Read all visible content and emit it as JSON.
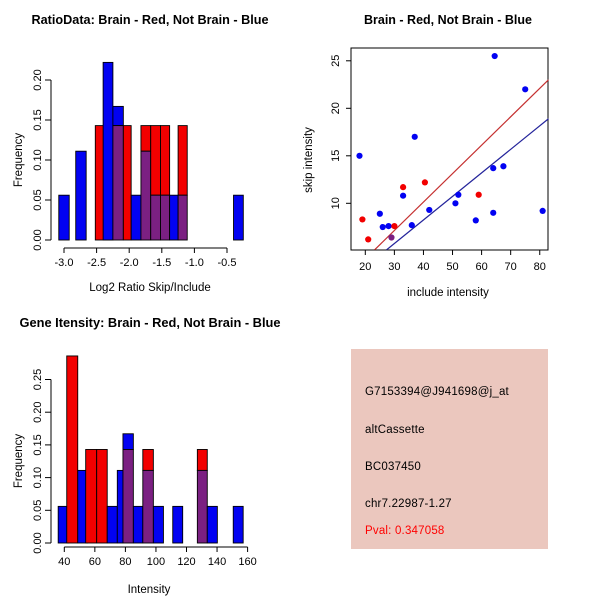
{
  "colors": {
    "blue": "#0202F2",
    "red": "#F20000",
    "purple": "#7B2082",
    "line_red": "#C53030",
    "line_blue": "#24249B",
    "axis": "#000000",
    "info_bg": "#EBC7BE",
    "pval_red": "#FF0000"
  },
  "chart_data": [
    {
      "id": "ratio_hist",
      "type": "bar",
      "title": "RatioData: Brain - Red, Not Brain - Blue",
      "xlabel": "Log2 Ratio Skip/Include",
      "ylabel": "Frequency",
      "xlim": [
        -3.2,
        -0.2
      ],
      "ylim": [
        0,
        0.23
      ],
      "xticks": [
        -3.0,
        -2.5,
        -2.0,
        -1.5,
        -1.0,
        -0.5
      ],
      "xtick_labels": [
        "-3.0",
        "-2.5",
        "-2.0",
        "-1.5",
        "-1.0",
        "-0.5"
      ],
      "yticks": [
        0,
        0.05,
        0.1,
        0.15,
        0.2
      ],
      "ytick_labels": [
        "0.00",
        "0.05",
        "0.10",
        "0.15",
        "0.20"
      ],
      "grid": false,
      "segments": [
        [
          -3.08,
          -2.92,
          0,
          0.056,
          "b"
        ],
        [
          -2.82,
          -2.66,
          0,
          0.111,
          "b"
        ],
        [
          -2.52,
          -2.25,
          0,
          0.143,
          "r"
        ],
        [
          -2.4,
          -2.25,
          0,
          0.222,
          "b"
        ],
        [
          -2.25,
          -2.09,
          0.143,
          0.167,
          "b"
        ],
        [
          -2.25,
          -2.09,
          0,
          0.143,
          "p"
        ],
        [
          -2.09,
          -1.97,
          0,
          0.143,
          "r"
        ],
        [
          -1.97,
          -1.82,
          0,
          0.056,
          "b"
        ],
        [
          -1.82,
          -1.67,
          0.111,
          0.143,
          "r"
        ],
        [
          -1.82,
          -1.67,
          0,
          0.111,
          "p"
        ],
        [
          -1.67,
          -1.52,
          0.056,
          0.143,
          "r"
        ],
        [
          -1.67,
          -1.52,
          0,
          0.056,
          "p"
        ],
        [
          -1.52,
          -1.38,
          0.056,
          0.143,
          "r"
        ],
        [
          -1.52,
          -1.38,
          0,
          0.056,
          "p"
        ],
        [
          -1.38,
          -1.25,
          0,
          0.056,
          "b"
        ],
        [
          -1.25,
          -1.11,
          0.056,
          0.143,
          "r"
        ],
        [
          -1.25,
          -1.11,
          0,
          0.056,
          "p"
        ],
        [
          -0.4,
          -0.25,
          0,
          0.056,
          "b"
        ]
      ]
    },
    {
      "id": "scatter",
      "type": "scatter",
      "title": "Brain - Red, Not Brain - Blue",
      "xlabel": "include intensity",
      "ylabel": "skip intensity",
      "xlim": [
        15,
        83
      ],
      "ylim": [
        5,
        26.3
      ],
      "xticks": [
        20,
        30,
        40,
        50,
        60,
        70,
        80
      ],
      "xtick_labels": [
        "20",
        "30",
        "40",
        "50",
        "60",
        "70",
        "80"
      ],
      "yticks": [
        10,
        15,
        20,
        25
      ],
      "ytick_labels": [
        "10",
        "15",
        "20",
        "25"
      ],
      "grid": false,
      "blue_points": [
        [
          18,
          15.0
        ],
        [
          25,
          8.9
        ],
        [
          26,
          7.5
        ],
        [
          28,
          7.6
        ],
        [
          33,
          10.8
        ],
        [
          36,
          7.7
        ],
        [
          37,
          17.0
        ],
        [
          42,
          9.3
        ],
        [
          51,
          10.0
        ],
        [
          52,
          10.9
        ],
        [
          58,
          8.2
        ],
        [
          64,
          9.0
        ],
        [
          64,
          13.7
        ],
        [
          64.5,
          25.5
        ],
        [
          67.5,
          13.9
        ],
        [
          75,
          22.0
        ],
        [
          81,
          9.2
        ]
      ],
      "red_points": [
        [
          19,
          8.3
        ],
        [
          21,
          6.2
        ],
        [
          30,
          7.6
        ],
        [
          33,
          11.7
        ],
        [
          40.5,
          12.2
        ],
        [
          59,
          10.9
        ]
      ],
      "purple_points": [
        [
          29,
          6.4
        ]
      ],
      "red_line": [
        [
          23.2,
          5.1
        ],
        [
          83,
          23.0
        ]
      ],
      "blue_line": [
        [
          27.3,
          5.1
        ],
        [
          83,
          18.9
        ]
      ]
    },
    {
      "id": "gene_hist",
      "type": "bar",
      "title": "Gene Itensity: Brain - Red, Not Brain - Blue",
      "xlabel": "Intensity",
      "ylabel": "Frequency",
      "xlim": [
        34,
        160
      ],
      "ylim": [
        0,
        0.29
      ],
      "xticks": [
        40,
        60,
        80,
        100,
        120,
        140,
        160
      ],
      "xtick_labels": [
        "40",
        "60",
        "80",
        "100",
        "120",
        "140",
        "160"
      ],
      "yticks": [
        0,
        0.05,
        0.1,
        0.15,
        0.2,
        0.25
      ],
      "ytick_labels": [
        "0.00",
        "0.05",
        "0.10",
        "0.15",
        "0.20",
        "0.25"
      ],
      "grid": false,
      "segments": [
        [
          36.0,
          43.0,
          0,
          0.056,
          "b"
        ],
        [
          41.6,
          48.8,
          0,
          0.286,
          "r"
        ],
        [
          48.8,
          55.3,
          0,
          0.111,
          "b"
        ],
        [
          54.0,
          61.2,
          0,
          0.143,
          "r"
        ],
        [
          61.2,
          68.1,
          0,
          0.143,
          "r"
        ],
        [
          68.1,
          74.7,
          0,
          0.056,
          "b"
        ],
        [
          74.7,
          78.4,
          0,
          0.111,
          "b"
        ],
        [
          78.4,
          85.2,
          0.143,
          0.167,
          "b"
        ],
        [
          78.4,
          85.2,
          0,
          0.143,
          "p"
        ],
        [
          85.2,
          91.4,
          0,
          0.056,
          "b"
        ],
        [
          91.4,
          98.3,
          0.111,
          0.143,
          "r"
        ],
        [
          91.4,
          98.3,
          0,
          0.111,
          "p"
        ],
        [
          98.3,
          104.9,
          0,
          0.056,
          "b"
        ],
        [
          111.0,
          117.5,
          0,
          0.056,
          "b"
        ],
        [
          127.1,
          133.6,
          0.111,
          0.143,
          "r"
        ],
        [
          127.1,
          133.6,
          0,
          0.111,
          "p"
        ],
        [
          133.6,
          140.2,
          0,
          0.056,
          "b"
        ],
        [
          150.6,
          157.1,
          0,
          0.056,
          "b"
        ]
      ]
    }
  ],
  "info_panel": {
    "probe_id": "G7153394@J941698@j_at",
    "splice_type": "altCassette",
    "accession": "BC037450",
    "locus": "chr7.22987-1.27",
    "pval_label": "Pval: 0.347058"
  }
}
